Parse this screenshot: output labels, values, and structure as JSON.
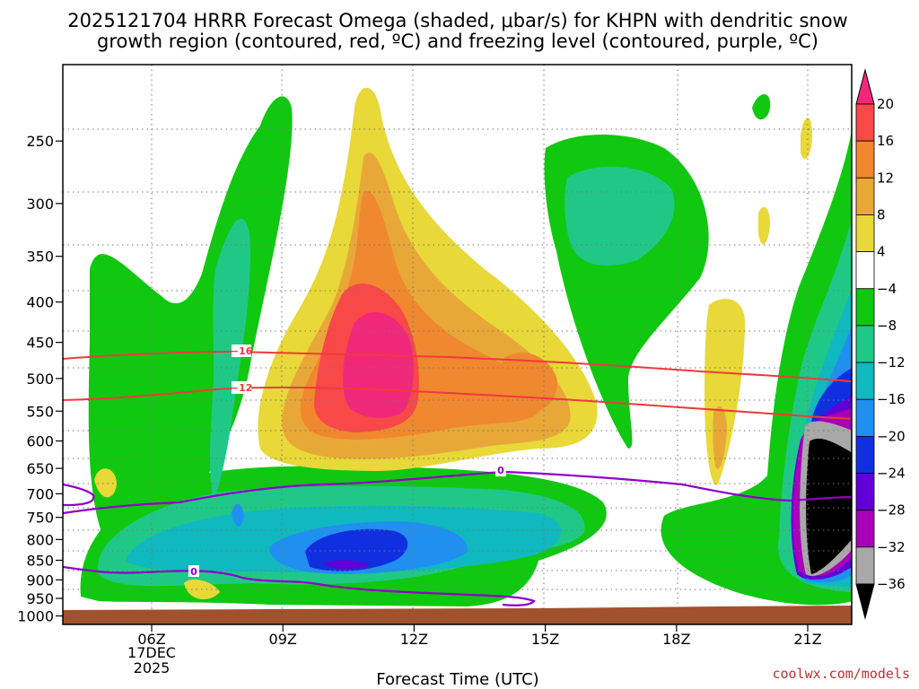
{
  "chart_data": {
    "type": "contour",
    "title_line1": "2025121704 HRRR Forecast Omega (shaded, μbar/s) for KHPN with dendritic snow",
    "title_line2": "growth region (contoured, red, ºC) and freezing level (contoured, purple, ºC)",
    "xlabel": "Forecast Time (UTC)",
    "x_ticks": [
      "06Z",
      "09Z",
      "12Z",
      "15Z",
      "18Z",
      "21Z"
    ],
    "x_tick_sub": [
      "17DEC",
      "2025"
    ],
    "y_ticks": [
      "250",
      "300",
      "350",
      "400",
      "450",
      "500",
      "550",
      "600",
      "650",
      "700",
      "750",
      "800",
      "850",
      "900",
      "950",
      "1000"
    ],
    "ylim": [
      1025,
      200
    ],
    "colorbar_labels": [
      "20",
      "16",
      "12",
      "8",
      "4",
      "−4",
      "−8",
      "−12",
      "−16",
      "−20",
      "−24",
      "−28",
      "−32",
      "−36"
    ],
    "colorbar_colors": [
      "#f0287a",
      "#f84848",
      "#f08830",
      "#e8a838",
      "#e8d838",
      "#ffffff",
      "#10c810",
      "#20c888",
      "#10b8c0",
      "#2090f0",
      "#1030e0",
      "#6000d8",
      "#a800b8",
      "#a8a8a8",
      "#000000"
    ],
    "contour_labels": {
      "red_upper": "−16",
      "red_lower": "−12",
      "purple_upper": "0",
      "purple_lower": "0"
    },
    "credit": "coolwx.com/models"
  }
}
